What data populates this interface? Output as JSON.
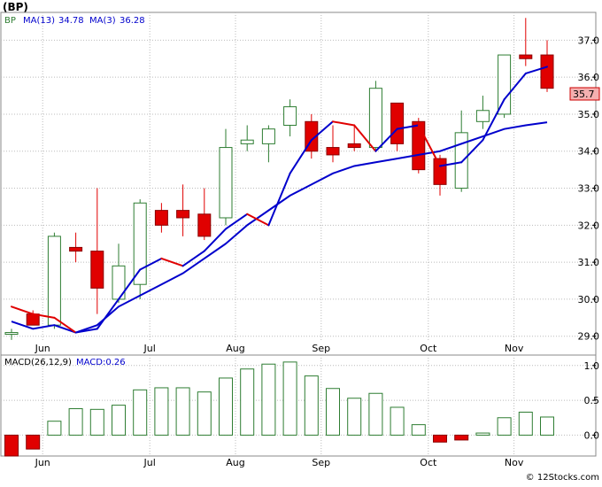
{
  "title": "(BP)",
  "legend": {
    "ticker": "BP",
    "ma13_label": "MA(13)",
    "ma13_value": "34.78",
    "ma3_label": "MA(3)",
    "ma3_value": "36.28",
    "macd_label": "MACD(26,12,9)",
    "macd_value_label": "MACD:0.26"
  },
  "last_price_label": "35.7",
  "watermark": "© 12Stocks.com",
  "colors": {
    "up": "#2e7d32",
    "down": "#e00000",
    "ma13": "#0000cc",
    "ma3_up": "#0000cc",
    "ma3_down": "#e00000",
    "macd": "#2e7d32",
    "grid": "#bbbbbb",
    "badge": "#f4b0b0"
  },
  "chart_data": [
    {
      "type": "candlestick",
      "title": "(BP)",
      "x_tick_labels": [
        "Jun",
        "Jul",
        "Aug",
        "Sep",
        "Oct",
        "Nov"
      ],
      "x_tick_index": [
        1,
        6,
        10,
        14,
        19,
        23
      ],
      "y_ticks": [
        29.0,
        30.0,
        31.0,
        32.0,
        33.0,
        34.0,
        35.0,
        36.0,
        37.0
      ],
      "ylim": [
        28.85,
        37.75
      ],
      "grid": true,
      "series": [
        {
          "o": 29.1,
          "h": 29.2,
          "l": 28.9,
          "c": 29.1
        },
        {
          "o": 29.6,
          "h": 29.7,
          "l": 29.3,
          "c": 29.3
        },
        {
          "o": 29.3,
          "h": 31.8,
          "l": 29.2,
          "c": 31.7
        },
        {
          "o": 31.4,
          "h": 31.8,
          "l": 31.0,
          "c": 31.3
        },
        {
          "o": 31.3,
          "h": 33.0,
          "l": 29.6,
          "c": 30.3
        },
        {
          "o": 30.0,
          "h": 31.5,
          "l": 29.9,
          "c": 30.9
        },
        {
          "o": 30.4,
          "h": 32.7,
          "l": 30.0,
          "c": 32.6
        },
        {
          "o": 32.4,
          "h": 32.6,
          "l": 31.8,
          "c": 32.0
        },
        {
          "o": 32.4,
          "h": 33.1,
          "l": 31.7,
          "c": 32.2
        },
        {
          "o": 32.3,
          "h": 33.0,
          "l": 31.6,
          "c": 31.7
        },
        {
          "o": 32.2,
          "h": 34.6,
          "l": 32.0,
          "c": 34.1
        },
        {
          "o": 34.2,
          "h": 34.7,
          "l": 34.0,
          "c": 34.3
        },
        {
          "o": 34.2,
          "h": 34.7,
          "l": 33.7,
          "c": 34.6
        },
        {
          "o": 34.7,
          "h": 35.4,
          "l": 34.4,
          "c": 35.2
        },
        {
          "o": 34.8,
          "h": 35.0,
          "l": 33.8,
          "c": 34.0
        },
        {
          "o": 34.1,
          "h": 34.7,
          "l": 33.7,
          "c": 33.9
        },
        {
          "o": 34.2,
          "h": 34.7,
          "l": 34.0,
          "c": 34.1
        },
        {
          "o": 34.1,
          "h": 35.9,
          "l": 34.0,
          "c": 35.7
        },
        {
          "o": 35.3,
          "h": 35.3,
          "l": 34.0,
          "c": 34.2
        },
        {
          "o": 34.8,
          "h": 34.9,
          "l": 33.4,
          "c": 33.5
        },
        {
          "o": 33.8,
          "h": 33.9,
          "l": 32.8,
          "c": 33.1
        },
        {
          "o": 33.0,
          "h": 35.1,
          "l": 32.9,
          "c": 34.5
        },
        {
          "o": 34.8,
          "h": 35.5,
          "l": 34.6,
          "c": 35.1
        },
        {
          "o": 35.0,
          "h": 36.6,
          "l": 34.9,
          "c": 36.6
        },
        {
          "o": 36.6,
          "h": 37.6,
          "l": 36.3,
          "c": 36.5
        },
        {
          "o": 36.6,
          "h": 37.0,
          "l": 35.6,
          "c": 35.7
        }
      ],
      "ma13": [
        29.4,
        29.2,
        29.3,
        29.1,
        29.3,
        29.8,
        30.1,
        30.4,
        30.7,
        31.1,
        31.5,
        32.0,
        32.4,
        32.8,
        33.1,
        33.4,
        33.6,
        33.7,
        33.8,
        33.9,
        34.0,
        34.2,
        34.4,
        34.6,
        34.7,
        34.78
      ],
      "ma3": [
        29.8,
        29.6,
        29.5,
        29.1,
        29.2,
        30.0,
        30.8,
        31.1,
        30.9,
        31.3,
        31.9,
        32.3,
        32.0,
        33.4,
        34.3,
        34.8,
        34.7,
        34.0,
        34.6,
        34.7,
        33.6,
        33.7,
        34.3,
        35.4,
        36.1,
        36.28
      ]
    },
    {
      "type": "bar",
      "title": "MACD(26,12,9)",
      "y_ticks": [
        0.0,
        0.5,
        1.0
      ],
      "ylim": [
        -0.3,
        1.15
      ],
      "values": [
        -0.3,
        -0.2,
        0.2,
        0.38,
        0.37,
        0.43,
        0.65,
        0.68,
        0.68,
        0.62,
        0.82,
        0.95,
        1.02,
        1.05,
        0.85,
        0.67,
        0.53,
        0.6,
        0.4,
        0.15,
        -0.1,
        -0.07,
        0.03,
        0.25,
        0.33,
        0.26
      ]
    }
  ]
}
